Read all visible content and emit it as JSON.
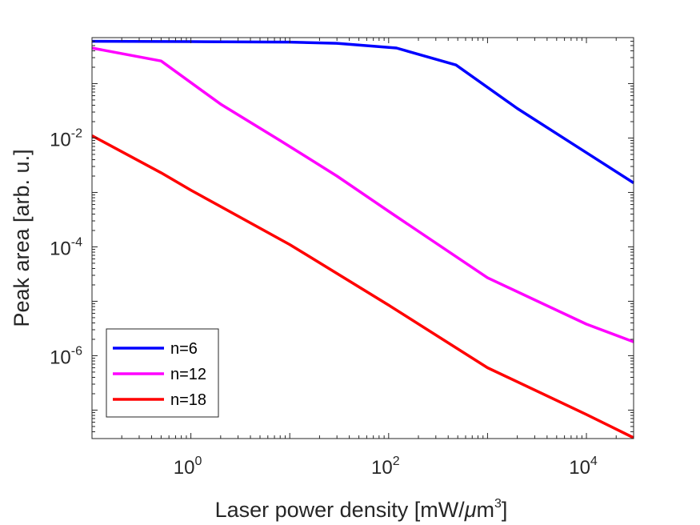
{
  "chart_data": {
    "type": "line",
    "title": "",
    "xlabel": "Laser power density [mW/",
    "xlabel_mu": "μ",
    "xlabel_tail": "m",
    "xlabel_sup": "3",
    "xlabel_close": "]",
    "ylabel": "Peak area [arb. u.]",
    "xscale": "log",
    "yscale": "log",
    "xlim": [
      0.1,
      30000
    ],
    "ylim": [
      3e-08,
      0.7
    ],
    "grid": false,
    "legend_position": "bottom-left",
    "xticks": [
      {
        "value": 1,
        "base": "10",
        "exp": "0"
      },
      {
        "value": 100,
        "base": "10",
        "exp": "2"
      },
      {
        "value": 10000,
        "base": "10",
        "exp": "4"
      }
    ],
    "yticks": [
      {
        "value": 0.01,
        "base": "10",
        "exp": "-2"
      },
      {
        "value": 0.0001,
        "base": "10",
        "exp": "-4"
      },
      {
        "value": 1e-06,
        "base": "10",
        "exp": "-6"
      }
    ],
    "series": [
      {
        "name": "n=6",
        "color": "#0000ff",
        "x": [
          0.1,
          1,
          10,
          30,
          120,
          480,
          2000,
          8500,
          30000
        ],
        "y": [
          0.6,
          0.59,
          0.58,
          0.55,
          0.45,
          0.22,
          0.035,
          0.0065,
          0.0015
        ]
      },
      {
        "name": "n=12",
        "color": "#ff00ff",
        "x": [
          0.1,
          0.5,
          2,
          8,
          30,
          100,
          1000,
          10000,
          30000
        ],
        "y": [
          0.45,
          0.26,
          0.042,
          0.009,
          0.002,
          0.00045,
          2.7e-05,
          3.8e-06,
          1.8e-06
        ]
      },
      {
        "name": "n=18",
        "color": "#ff0000",
        "x": [
          0.1,
          0.5,
          1,
          10,
          100,
          1000,
          10000,
          30000
        ],
        "y": [
          0.011,
          0.0023,
          0.0011,
          0.00011,
          8.5e-06,
          6e-07,
          8.3e-08,
          3.1e-08
        ]
      }
    ]
  }
}
